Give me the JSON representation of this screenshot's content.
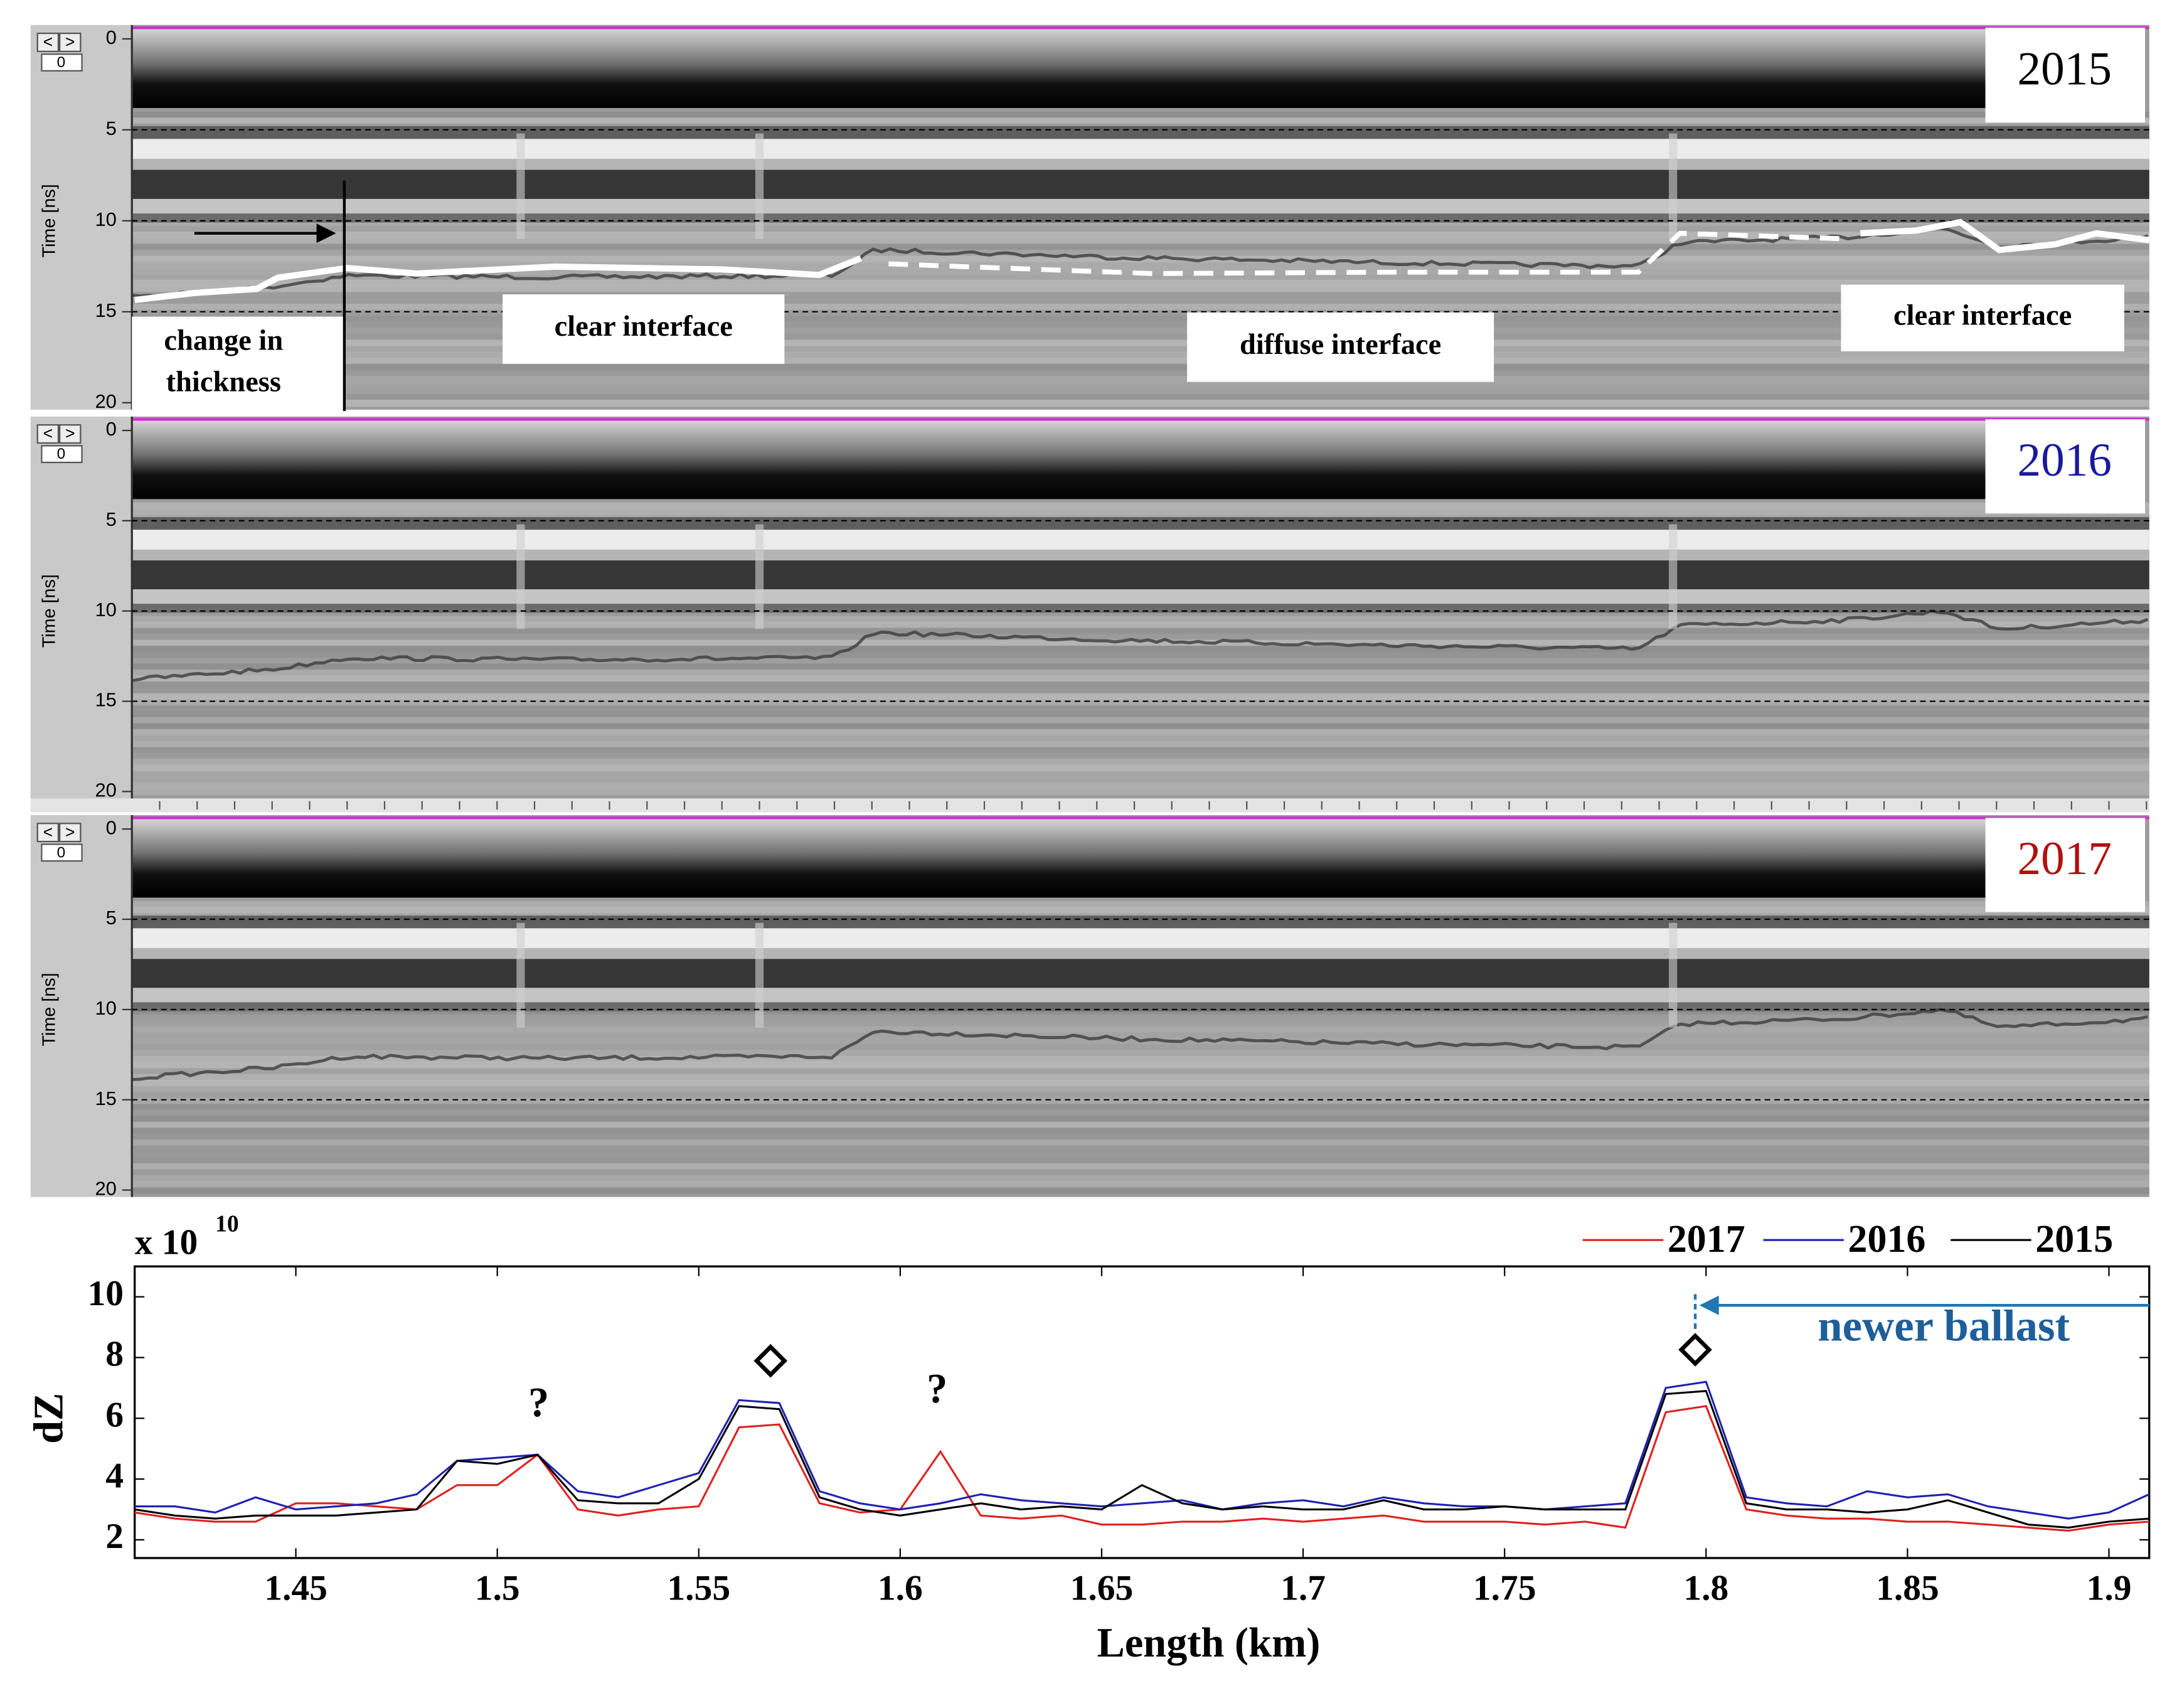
{
  "chart_data": [
    {
      "type": "radargram",
      "label": "2015",
      "label_color": "#000000",
      "ylabel": "Time [ns]",
      "ylim": [
        0,
        20
      ],
      "yticks": [
        0,
        5,
        10,
        15,
        20
      ],
      "grid": true,
      "controls": {
        "prev": "<",
        "next": ">",
        "index": "0"
      },
      "annotations": [
        [
          "change in",
          "thickness"
        ],
        [
          "clear interface"
        ],
        [
          "diffuse interface"
        ],
        [
          "clear interface"
        ]
      ]
    },
    {
      "type": "radargram",
      "label": "2016",
      "label_color": "#1a1a9a",
      "ylabel": "Time [ns]",
      "ylim": [
        0,
        20
      ],
      "yticks": [
        0,
        5,
        10,
        15,
        20
      ],
      "grid": true,
      "controls": {
        "prev": "<",
        "next": ">",
        "index": "0"
      }
    },
    {
      "type": "radargram",
      "label": "2017",
      "label_color": "#b01010",
      "ylabel": "Time [ns]",
      "ylim": [
        0,
        20
      ],
      "yticks": [
        0,
        5,
        10,
        15,
        20
      ],
      "grid": true,
      "controls": {
        "prev": "<",
        "next": ">",
        "index": "0"
      }
    },
    {
      "type": "line",
      "xlabel": "Length (km)",
      "ylabel": "dZ",
      "y_multiplier": {
        "base": "x 10",
        "exponent": "10"
      },
      "xlim": [
        1.41,
        1.91
      ],
      "xticks": [
        1.45,
        1.5,
        1.55,
        1.6,
        1.65,
        1.7,
        1.75,
        1.8,
        1.85,
        1.9
      ],
      "ylim": [
        1.4,
        11
      ],
      "yticks": [
        2,
        4,
        6,
        8,
        10
      ],
      "x": [
        1.41,
        1.42,
        1.43,
        1.44,
        1.45,
        1.46,
        1.47,
        1.48,
        1.49,
        1.5,
        1.51,
        1.52,
        1.53,
        1.54,
        1.55,
        1.56,
        1.57,
        1.58,
        1.59,
        1.6,
        1.61,
        1.62,
        1.63,
        1.64,
        1.65,
        1.66,
        1.67,
        1.68,
        1.69,
        1.7,
        1.71,
        1.72,
        1.73,
        1.74,
        1.75,
        1.76,
        1.77,
        1.78,
        1.79,
        1.8,
        1.81,
        1.82,
        1.83,
        1.84,
        1.85,
        1.86,
        1.87,
        1.88,
        1.89,
        1.9,
        1.91
      ],
      "series": [
        {
          "name": "2017",
          "color": "#e02020",
          "values": [
            2.9,
            2.7,
            2.6,
            2.6,
            3.2,
            3.2,
            3.1,
            3.0,
            3.8,
            3.8,
            4.8,
            3.0,
            2.8,
            3.0,
            3.1,
            5.7,
            5.8,
            3.2,
            2.9,
            3.0,
            4.9,
            2.8,
            2.7,
            2.8,
            2.5,
            2.5,
            2.6,
            2.6,
            2.7,
            2.6,
            2.7,
            2.8,
            2.6,
            2.6,
            2.6,
            2.5,
            2.6,
            2.4,
            6.2,
            6.4,
            3.0,
            2.8,
            2.7,
            2.7,
            2.6,
            2.6,
            2.5,
            2.4,
            2.3,
            2.5,
            2.6
          ]
        },
        {
          "name": "2016",
          "color": "#2020b0",
          "values": [
            3.1,
            3.1,
            2.9,
            3.4,
            3.0,
            3.1,
            3.2,
            3.5,
            4.6,
            4.7,
            4.8,
            3.6,
            3.4,
            3.8,
            4.2,
            6.6,
            6.5,
            3.6,
            3.2,
            3.0,
            3.2,
            3.5,
            3.3,
            3.2,
            3.1,
            3.2,
            3.3,
            3.0,
            3.2,
            3.3,
            3.1,
            3.4,
            3.2,
            3.1,
            3.1,
            3.0,
            3.1,
            3.2,
            7.0,
            7.2,
            3.4,
            3.2,
            3.1,
            3.6,
            3.4,
            3.5,
            3.1,
            2.9,
            2.7,
            2.9,
            3.5
          ]
        },
        {
          "name": "2015",
          "color": "#000000",
          "values": [
            3.0,
            2.8,
            2.7,
            2.8,
            2.8,
            2.8,
            2.9,
            3.0,
            4.6,
            4.5,
            4.8,
            3.3,
            3.2,
            3.2,
            4.0,
            6.4,
            6.3,
            3.4,
            3.0,
            2.8,
            3.0,
            3.2,
            3.0,
            3.1,
            3.0,
            3.8,
            3.2,
            3.0,
            3.1,
            3.0,
            3.0,
            3.3,
            3.0,
            3.0,
            3.1,
            3.0,
            3.0,
            3.0,
            6.8,
            6.9,
            3.2,
            3.0,
            3.0,
            2.9,
            3.0,
            3.3,
            2.9,
            2.5,
            2.4,
            2.6,
            2.7
          ]
        }
      ],
      "annotations": [
        "?",
        "?",
        "newer ballast"
      ]
    }
  ]
}
